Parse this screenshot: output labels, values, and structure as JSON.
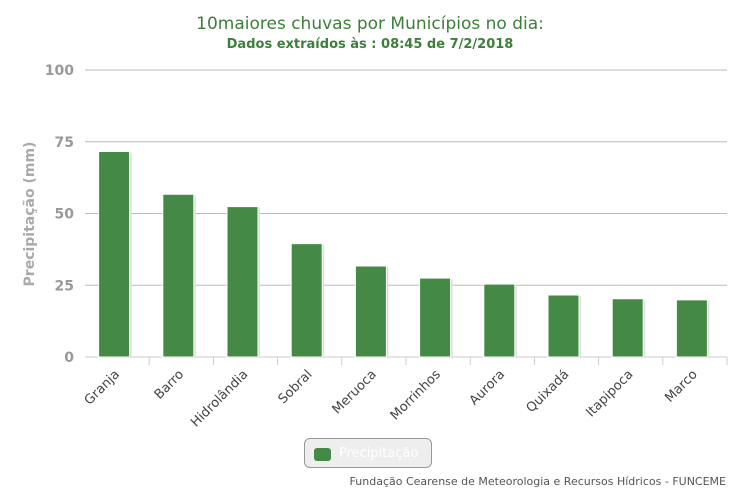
{
  "chart_data": {
    "type": "bar",
    "title": "10maiores chuvas por Municípios no dia:",
    "subtitle": "Dados extraídos às : 08:45 de 7/2/2018",
    "xlabel": "",
    "ylabel": "Precipitação (mm)",
    "ylim": [
      0,
      100
    ],
    "yticks": [
      0,
      25,
      50,
      75,
      100
    ],
    "grid": true,
    "categories": [
      "Granja",
      "Barro",
      "Hidrolândia",
      "Sobral",
      "Meruoca",
      "Morrinhos",
      "Aurora",
      "Quixadá",
      "Itapipoca",
      "Marco"
    ],
    "series": [
      {
        "name": "Precipitação",
        "color": "#448a46",
        "values": [
          71.6,
          56.7,
          52.4,
          39.5,
          31.7,
          27.5,
          25.4,
          21.6,
          20.3,
          19.9
        ]
      }
    ],
    "legend": {
      "label": "Precipitação",
      "placement": "bottom-center"
    },
    "credits": "Fundação Cearense de Meteorologia e Recursos Hídricos - FUNCEME"
  }
}
